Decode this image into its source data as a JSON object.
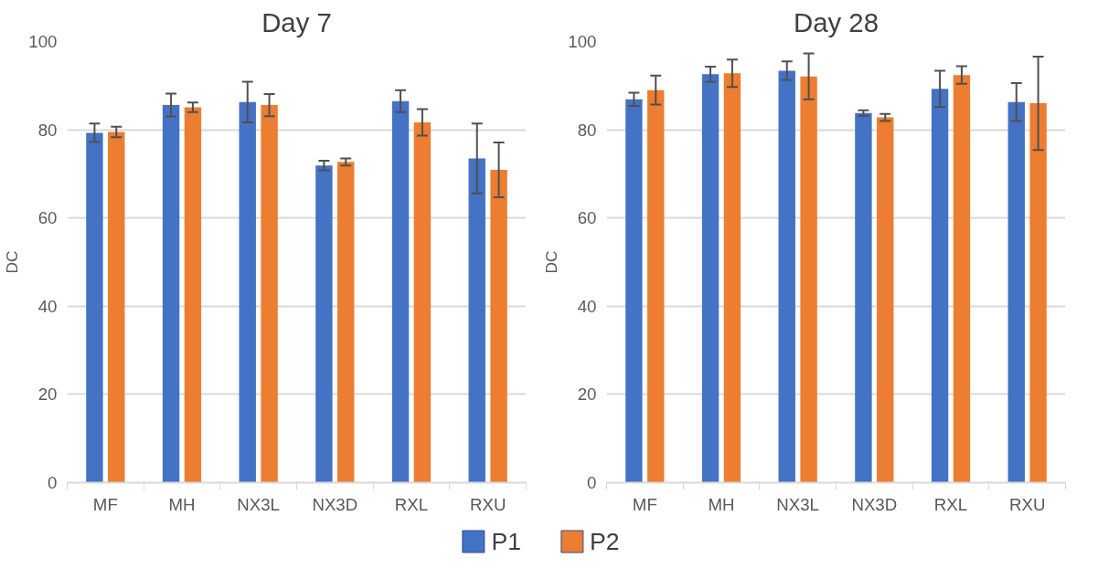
{
  "chart_data": [
    {
      "type": "bar",
      "title": "Day 7",
      "ylabel": "DC",
      "categories": [
        "MF",
        "MH",
        "NX3L",
        "NX3D",
        "RXL",
        "RXU"
      ],
      "ylim": [
        0,
        100
      ],
      "yticks": [
        0,
        20,
        40,
        60,
        80,
        100
      ],
      "grid": "y",
      "legend": "bottom",
      "series": [
        {
          "name": "P1",
          "color": "#4472c4",
          "values": [
            79.3,
            85.6,
            86.3,
            71.9,
            86.5,
            73.5
          ],
          "errors": [
            2.1,
            2.6,
            4.6,
            1.1,
            2.5,
            7.9
          ]
        },
        {
          "name": "P2",
          "color": "#ed7d31",
          "values": [
            79.5,
            85.1,
            85.6,
            72.7,
            81.7,
            70.9
          ],
          "errors": [
            1.2,
            1.1,
            2.5,
            0.8,
            3.0,
            6.2
          ]
        }
      ]
    },
    {
      "type": "bar",
      "title": "Day 28",
      "ylabel": "DC",
      "categories": [
        "MF",
        "MH",
        "NX3L",
        "NX3D",
        "RXL",
        "RXU"
      ],
      "ylim": [
        0,
        100
      ],
      "yticks": [
        0,
        20,
        40,
        60,
        80,
        100
      ],
      "grid": "y",
      "series": [
        {
          "color": "#4472c4",
          "values": [
            86.9,
            92.6,
            93.4,
            83.8,
            89.3,
            86.3
          ],
          "errors": [
            1.5,
            1.7,
            2.1,
            0.6,
            4.1,
            4.3
          ]
        },
        {
          "color": "#ed7d31",
          "values": [
            89.0,
            92.8,
            92.1,
            82.8,
            92.4,
            86.0
          ],
          "errors": [
            3.3,
            3.1,
            5.2,
            0.8,
            2.0,
            10.6
          ]
        }
      ]
    }
  ]
}
